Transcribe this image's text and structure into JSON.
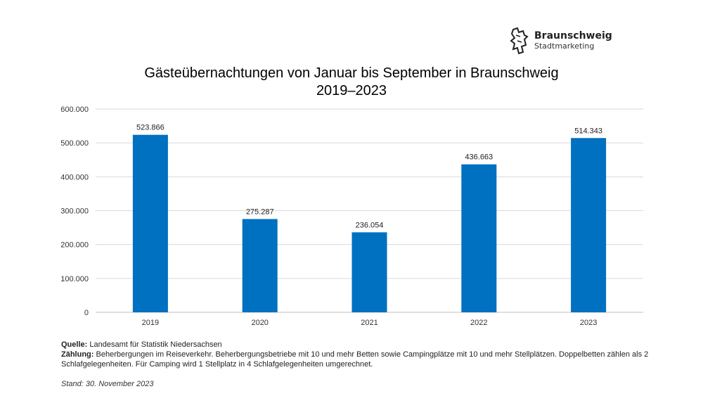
{
  "logo": {
    "name": "Braunschweig",
    "subtitle": "Stadtmarketing"
  },
  "chart_data": {
    "type": "bar",
    "title": "Gästeübernachtungen von Januar bis September in Braunschweig",
    "subtitle": "2019–2023",
    "categories": [
      "2019",
      "2020",
      "2021",
      "2022",
      "2023"
    ],
    "values": [
      523866,
      275287,
      236054,
      436663,
      514343
    ],
    "data_labels": [
      "523.866",
      "275.287",
      "236.054",
      "436.663",
      "514.343"
    ],
    "ylim": [
      0,
      600000
    ],
    "yticks": [
      0,
      100000,
      200000,
      300000,
      400000,
      500000,
      600000
    ],
    "ytick_labels": [
      "0",
      "100.000",
      "200.000",
      "300.000",
      "400.000",
      "500.000",
      "600.000"
    ],
    "xlabel": "",
    "ylabel": "",
    "grid": true,
    "bar_color": "#0070C0"
  },
  "notes": {
    "source_label": "Quelle:",
    "source_text": "Landesamt für Statistik Niedersachsen",
    "count_label": "Zählung:",
    "count_text": "Beherbergungen im Reiseverkehr. Beherbergungsbetriebe mit 10 und mehr Betten sowie Campingplätze mit 10 und mehr Stellplätzen. Doppelbetten zählen als 2 Schlafgelegenheiten. Für Camping wird 1 Stellplatz in 4 Schlafgelegenheiten umgerechnet.",
    "stand": "Stand: 30. November 2023"
  }
}
